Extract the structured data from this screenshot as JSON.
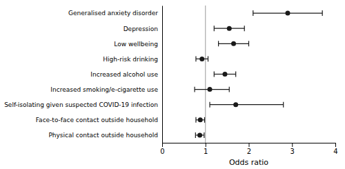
{
  "chart_data": {
    "type": "forest",
    "orientation": "horizontal",
    "categories": [
      "Generalised anxiety disorder",
      "Depression",
      "Low wellbeing",
      "High-risk drinking",
      "Increased alcohol use",
      "Increased smoking/e-cigarette use",
      "Self-isolating given suspected COVID-19 infection",
      "Face-to-face contact outside household",
      "Physical contact outside household"
    ],
    "values": [
      2.9,
      1.55,
      1.65,
      0.92,
      1.45,
      1.1,
      1.7,
      0.88,
      0.87
    ],
    "ci_low": [
      2.1,
      1.2,
      1.3,
      0.78,
      1.2,
      0.75,
      1.1,
      0.78,
      0.77
    ],
    "ci_high": [
      3.7,
      1.9,
      2.0,
      1.06,
      1.7,
      1.55,
      2.8,
      0.98,
      0.97
    ],
    "reference_line": 1,
    "xlim": [
      0,
      4
    ],
    "xticks": [
      0,
      1,
      2,
      3,
      4
    ],
    "xlabel": "Odds ratio",
    "color": "#1a1a1a",
    "grid": false
  }
}
